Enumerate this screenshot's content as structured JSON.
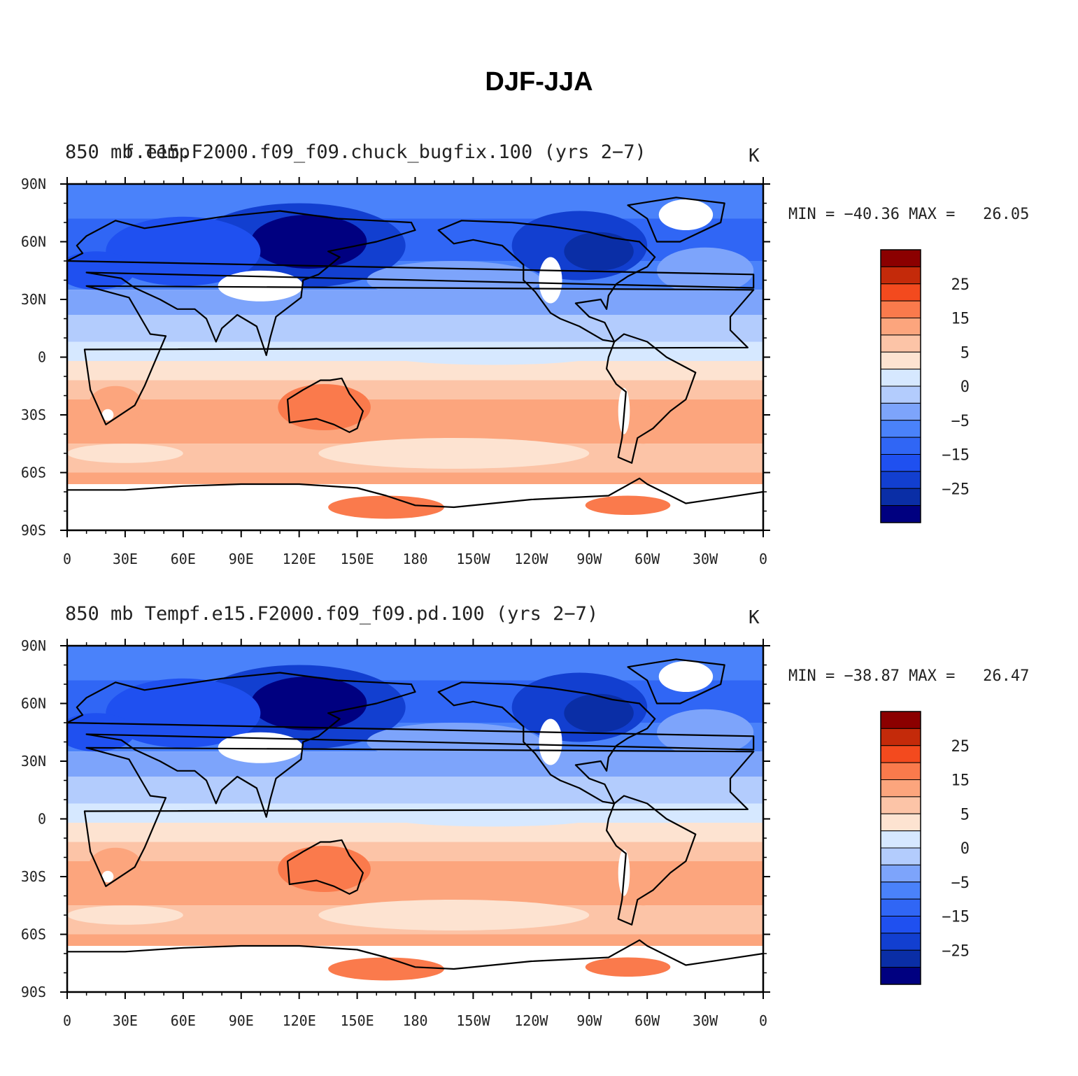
{
  "figure": {
    "title": "DJF-JJA"
  },
  "axes": {
    "lat_labels": [
      "90N",
      "60N",
      "30N",
      "0",
      "30S",
      "60S",
      "90S"
    ],
    "lon_labels": [
      "0",
      "30E",
      "60E",
      "90E",
      "120E",
      "150E",
      "180",
      "150W",
      "120W",
      "90W",
      "60W",
      "30W",
      "0"
    ]
  },
  "colorbar": {
    "levels": [
      -35,
      -30,
      -25,
      -20,
      -15,
      -10,
      -5,
      0,
      5,
      10,
      15,
      20,
      25,
      30
    ],
    "colors": [
      "#000080",
      "#0a2ea6",
      "#123fd0",
      "#1f50f0",
      "#3066f5",
      "#4a82fa",
      "#7da4fb",
      "#b3ccfd",
      "#d6e8ff",
      "#fde3d1",
      "#fcc4a7",
      "#fca57d",
      "#fa7a4c",
      "#f34a1e",
      "#c42a0a",
      "#8b0000"
    ],
    "labels": [
      "25",
      "15",
      "5",
      "0",
      "−5",
      "−15",
      "−25"
    ]
  },
  "chart_data": [
    {
      "type": "heatmap",
      "left_title": "850  mb  Temp",
      "center_title": "f.e15.F2000.f09_f09.chuck_bugfix.100 (yrs 2−7)",
      "units": "K",
      "min_max": "MIN = −40.36 MAX =   26.05",
      "min": -40.36,
      "max": 26.05,
      "variable": "850 mb Temp",
      "season": "DJF-JJA"
    },
    {
      "type": "heatmap",
      "left_title": "850  mb  Temp",
      "center_title": "f.e15.F2000.f09_f09.pd.100 (yrs 2−7)",
      "units": "K",
      "min_max": "MIN = −38.87 MAX =   26.47",
      "min": -38.87,
      "max": 26.47,
      "variable": "850 mb Temp",
      "season": "DJF-JJA"
    }
  ]
}
